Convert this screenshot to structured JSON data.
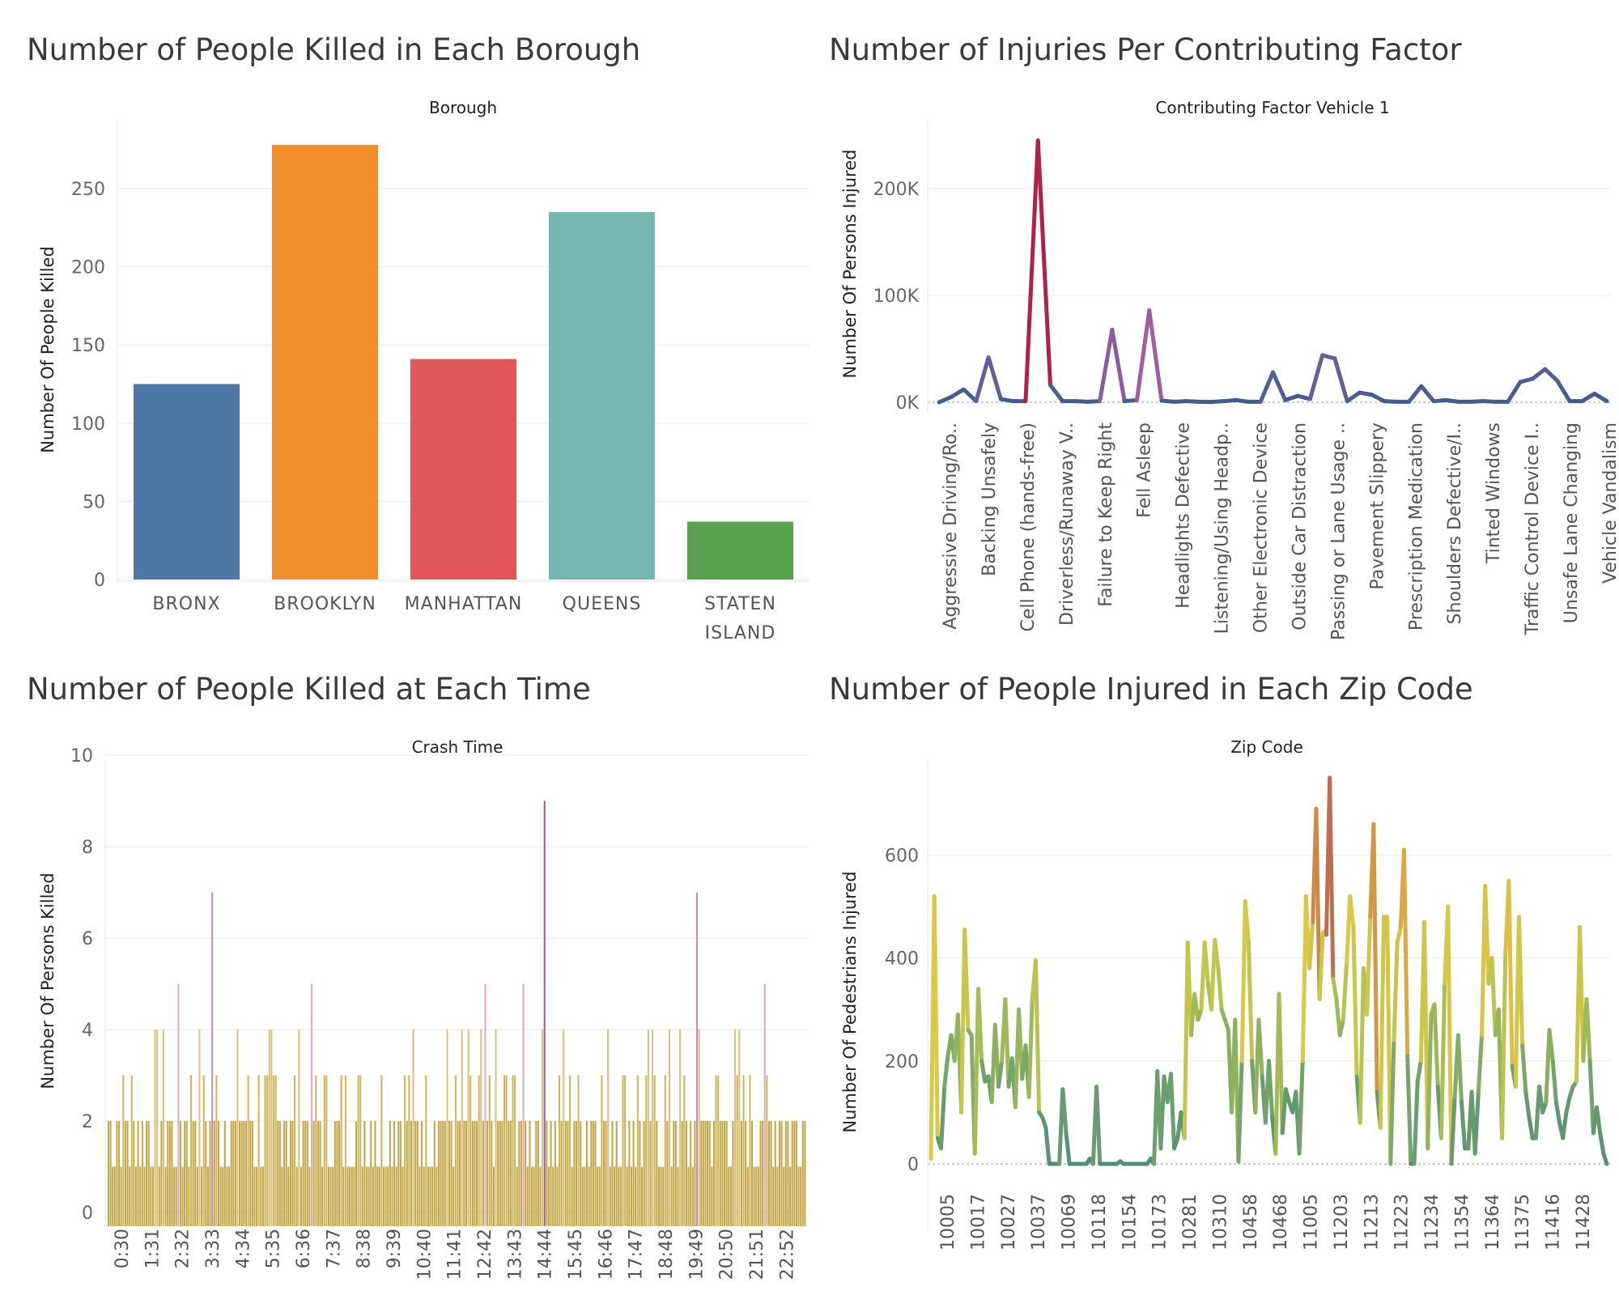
{
  "titles": {
    "tl": "Number of People Killed in Each Borough",
    "tr": "Number of Injuries Per Contributing Factor",
    "bl": "Number of People Killed at Each Time",
    "br": "Number of People Injured in Each Zip Code"
  },
  "chart_data": [
    {
      "type": "bar",
      "title": "Number of People Killed in Each Borough",
      "xlabel": "Borough",
      "ylabel": "Number Of People Killed",
      "categories": [
        "BRONX",
        "BROOKLYN",
        "MANHATTAN",
        "QUEENS",
        "STATEN ISLAND"
      ],
      "values": [
        125,
        278,
        141,
        235,
        37
      ],
      "colors": [
        "#4e79a7",
        "#f28e2b",
        "#e15759",
        "#76b7b2",
        "#59a14f"
      ],
      "yticks": [
        0,
        50,
        100,
        150,
        200,
        250
      ],
      "ylim": [
        0,
        290
      ],
      "grid": true
    },
    {
      "type": "line",
      "title": "Number of Injuries Per Contributing Factor",
      "xlabel": "Contributing Factor Vehicle 1",
      "ylabel": "Number Of Persons Injured",
      "xtick_labels": [
        "Aggressive Driving/Ro..",
        "Backing Unsafely",
        "Cell Phone (hands-free)",
        "Driverless/Runaway V..",
        "Failure to Keep Right",
        "Fell Asleep",
        "Headlights Defective",
        "Listening/Using Headp..",
        "Other Electronic Device",
        "Outside Car Distraction",
        "Passing or Lane Usage ..",
        "Pavement Slippery",
        "Prescription Medication",
        "Shoulders Defective/I..",
        "Tinted Windows",
        "Traffic Control Device I..",
        "Unsafe Lane Changing",
        "Vehicle Vandalism"
      ],
      "values": [
        0,
        5000,
        12000,
        1000,
        42000,
        3000,
        1000,
        1000,
        245000,
        16000,
        1000,
        1000,
        500,
        1000,
        68000,
        1000,
        2000,
        86000,
        1500,
        500,
        1000,
        500,
        300,
        1000,
        2000,
        500,
        500,
        28000,
        2000,
        6000,
        3000,
        44000,
        41000,
        1000,
        9000,
        7000,
        1000,
        500,
        500,
        15000,
        1000,
        2000,
        500,
        500,
        1000,
        500,
        500,
        19000,
        22000,
        31000,
        20000,
        1000,
        1000,
        8000,
        1000
      ],
      "yticks": [
        "0K",
        "100K",
        "200K"
      ],
      "ytick_values": [
        0,
        100000,
        200000
      ],
      "ylim": [
        -5000,
        250000
      ],
      "grid": true
    },
    {
      "type": "bar",
      "title": "Number of People Killed at Each Time",
      "xlabel": "Crash Time",
      "ylabel": "Number Of Persons Killed",
      "xtick_labels": [
        "0:30",
        "1:31",
        "2:32",
        "3:33",
        "4:34",
        "5:35",
        "6:36",
        "7:37",
        "8:38",
        "9:39",
        "10:40",
        "11:41",
        "12:42",
        "13:43",
        "14:44",
        "15:45",
        "16:46",
        "17:47",
        "18:48",
        "19:49",
        "20:50",
        "21:51",
        "22:52"
      ],
      "bar_count": 330,
      "peaks": [
        {
          "time": "3:33",
          "value": 7
        },
        {
          "time": "14:44",
          "value": 9
        },
        {
          "time": "19:49",
          "value": 7
        }
      ],
      "typical_values": [
        1,
        2,
        3,
        4,
        5
      ],
      "yticks": [
        0,
        2,
        4,
        6,
        8,
        10
      ],
      "ylim": [
        -0.3,
        10
      ],
      "grid": true
    },
    {
      "type": "line",
      "title": "Number of People Injured in Each Zip Code",
      "xlabel": "Zip Code",
      "ylabel": "Number Of Pedestrians Injured",
      "xtick_labels": [
        "10005",
        "10017",
        "10027",
        "10037",
        "10069",
        "10118",
        "10154",
        "10173",
        "10281",
        "10310",
        "10458",
        "10468",
        "11005",
        "11203",
        "11213",
        "11223",
        "11234",
        "11354",
        "11364",
        "11375",
        "11416",
        "11428"
      ],
      "values": [
        10,
        520,
        50,
        30,
        150,
        210,
        250,
        200,
        290,
        100,
        455,
        260,
        250,
        20,
        340,
        200,
        160,
        170,
        120,
        270,
        150,
        200,
        320,
        150,
        205,
        110,
        300,
        165,
        230,
        130,
        320,
        395,
        100,
        90,
        70,
        0,
        0,
        0,
        0,
        145,
        60,
        0,
        0,
        0,
        0,
        0,
        0,
        10,
        0,
        150,
        0,
        0,
        0,
        0,
        0,
        0,
        5,
        0,
        0,
        0,
        0,
        0,
        0,
        0,
        0,
        10,
        0,
        180,
        30,
        170,
        120,
        175,
        30,
        50,
        100,
        50,
        430,
        250,
        330,
        280,
        300,
        430,
        350,
        300,
        435,
        380,
        300,
        280,
        260,
        100,
        280,
        5,
        200,
        510,
        430,
        200,
        100,
        280,
        170,
        80,
        200,
        90,
        20,
        330,
        60,
        145,
        120,
        100,
        140,
        20,
        200,
        520,
        380,
        470,
        690,
        320,
        450,
        445,
        750,
        360,
        320,
        250,
        280,
        390,
        520,
        460,
        170,
        80,
        380,
        290,
        480,
        660,
        140,
        70,
        480,
        480,
        0,
        240,
        430,
        460,
        610,
        210,
        0,
        0,
        160,
        200,
        470,
        30,
        290,
        310,
        150,
        50,
        350,
        500,
        0,
        130,
        250,
        120,
        30,
        30,
        140,
        20,
        140,
        250,
        540,
        350,
        400,
        250,
        300,
        50,
        410,
        550,
        190,
        150,
        480,
        230,
        140,
        90,
        50,
        50,
        150,
        100,
        120,
        260,
        200,
        120,
        80,
        50,
        100,
        130,
        150,
        160,
        460,
        200,
        320,
        200,
        60,
        110,
        60,
        20,
        0
      ],
      "yticks": [
        0,
        200,
        400,
        600
      ],
      "ylim": [
        -60,
        780
      ],
      "grid": true
    }
  ]
}
